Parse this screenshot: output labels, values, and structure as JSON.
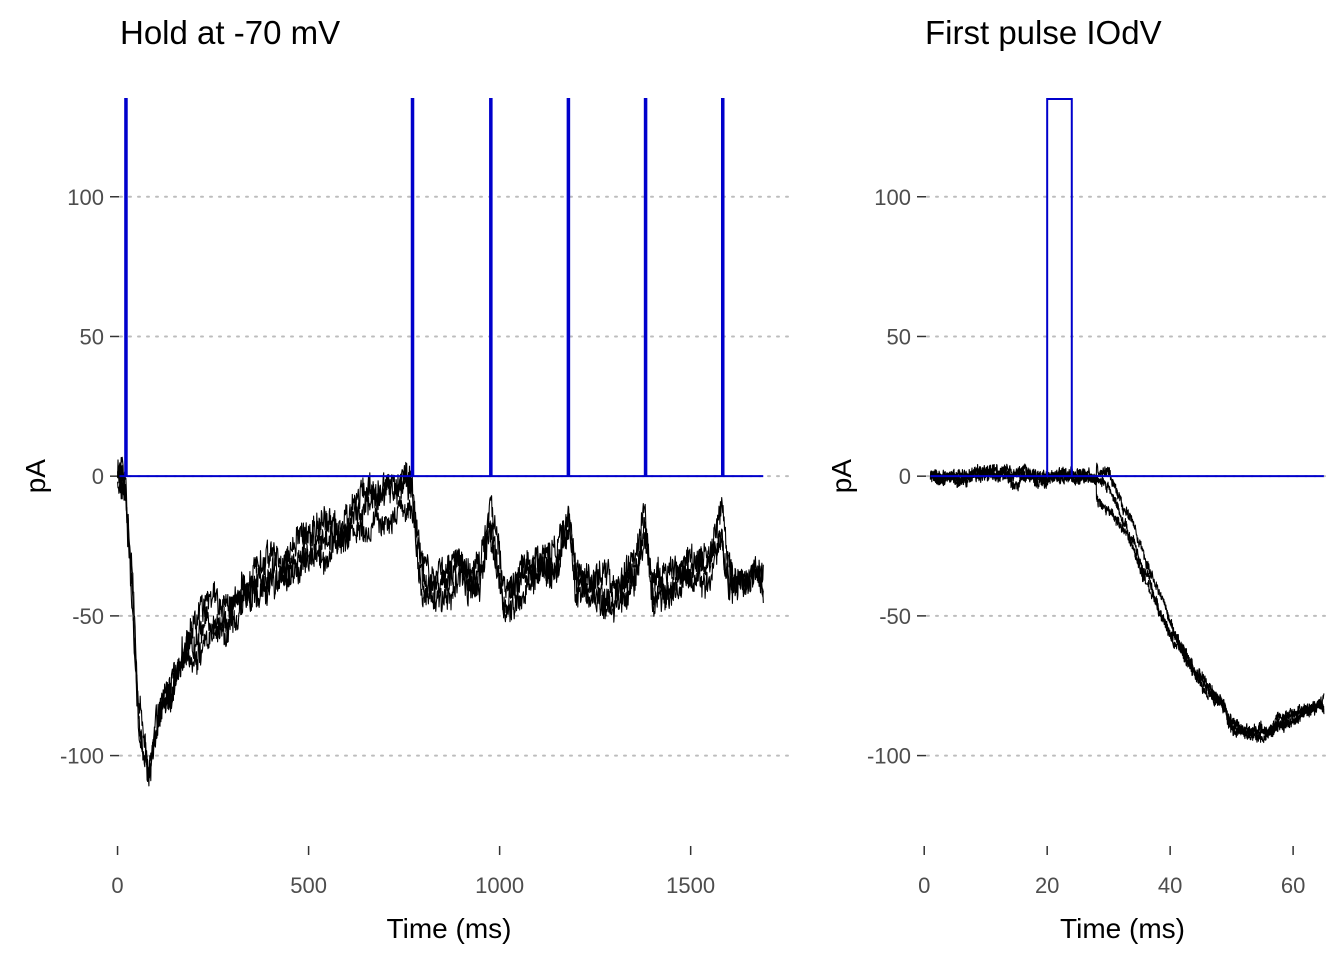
{
  "chart_data": [
    {
      "type": "line",
      "title": "Hold at -70 mV",
      "xlabel": "Time (ms)",
      "ylabel": "pA",
      "xlim": [
        -25,
        1760
      ],
      "ylim": [
        -132,
        140
      ],
      "xticks": [
        0,
        500,
        1000,
        1500
      ],
      "xtick_labels": [
        "0",
        "500",
        "1000",
        "1500"
      ],
      "yticks": [
        -100,
        -50,
        0,
        50,
        100
      ],
      "ytick_labels": [
        "-100",
        "-50",
        "0",
        "50",
        "100"
      ],
      "grid": "horizontal dotted",
      "legend": "none",
      "series": [
        {
          "role": "stimulus",
          "color": "#0000cc",
          "baseline": 0,
          "x_range": [
            5,
            1690
          ],
          "pulse_height": 135,
          "pulse_times": [
            20,
            770,
            975,
            1178,
            1380,
            1582
          ],
          "pulse_width_ms": 4
        },
        {
          "role": "current-traces",
          "color": "#000000",
          "trace_count": 3,
          "x": [
            0,
            20,
            40,
            55,
            70,
            80,
            95,
            110,
            130,
            160,
            200,
            250,
            300,
            350,
            400,
            450,
            500,
            550,
            600,
            650,
            700,
            740,
            770,
            785,
            800,
            850,
            900,
            950,
            975,
            990,
            1010,
            1050,
            1100,
            1150,
            1180,
            1200,
            1250,
            1300,
            1350,
            1380,
            1400,
            1450,
            1500,
            1550,
            1582,
            1600,
            1640,
            1690
          ],
          "y": [
            0,
            -3,
            -45,
            -85,
            -100,
            -105,
            -95,
            -85,
            -78,
            -70,
            -60,
            -52,
            -45,
            -40,
            -35,
            -30,
            -25,
            -22,
            -18,
            -12,
            -8,
            -4,
            -4,
            -20,
            -38,
            -38,
            -34,
            -34,
            -12,
            -28,
            -45,
            -38,
            -32,
            -32,
            -16,
            -38,
            -42,
            -44,
            -36,
            -18,
            -38,
            -38,
            -32,
            -32,
            -18,
            -38,
            -40,
            -36
          ]
        }
      ]
    },
    {
      "type": "line",
      "title": "First pulse IOdV",
      "xlabel": "Time (ms)",
      "ylabel": "pA",
      "xlim": [
        -1.5,
        66
      ],
      "ylim": [
        -132,
        140
      ],
      "xticks": [
        0,
        20,
        40,
        60
      ],
      "xtick_labels": [
        "0",
        "20",
        "40",
        "60"
      ],
      "yticks": [
        -100,
        -50,
        0,
        50,
        100
      ],
      "ytick_labels": [
        "-100",
        "-50",
        "0",
        "50",
        "100"
      ],
      "grid": "horizontal dotted",
      "legend": "none",
      "series": [
        {
          "role": "stimulus",
          "color": "#0000cc",
          "baseline": 0,
          "x_range": [
            1,
            65
          ],
          "pulse_height": 135,
          "pulse_times": [
            20
          ],
          "pulse_width_ms": 4
        },
        {
          "role": "current-traces",
          "color": "#000000",
          "trace_count": 3,
          "x": [
            1,
            10,
            20,
            25,
            28,
            30,
            33,
            36,
            40,
            44,
            48,
            50,
            52,
            55,
            58,
            62,
            65
          ],
          "y": [
            0,
            0,
            0,
            0,
            0,
            -5,
            -18,
            -35,
            -55,
            -70,
            -80,
            -88,
            -92,
            -92,
            -88,
            -84,
            -82
          ]
        }
      ]
    }
  ]
}
